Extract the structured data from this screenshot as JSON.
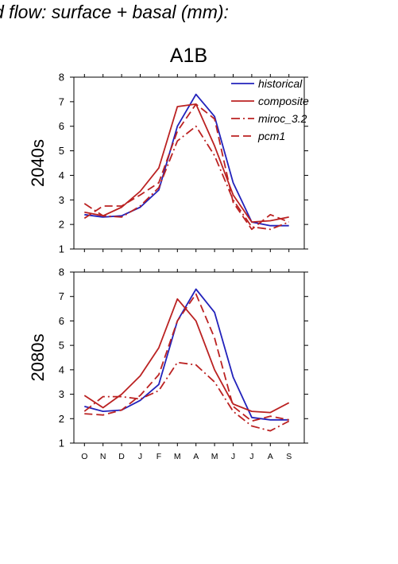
{
  "page_title": "d flow: surface + basal (mm):",
  "scenario": "A1B",
  "colors": {
    "historical": "#2222bb",
    "projection": "#bb2222",
    "axis": "#000000"
  },
  "chart_data": [
    {
      "type": "line",
      "panel_label": "2040s",
      "categories": [
        "O",
        "N",
        "D",
        "J",
        "F",
        "M",
        "A",
        "M",
        "J",
        "J",
        "A",
        "S"
      ],
      "ylim": [
        1,
        8
      ],
      "yticks": [
        1,
        2,
        3,
        4,
        5,
        6,
        7,
        8
      ],
      "legend": {
        "placement": "top-right"
      },
      "series": [
        {
          "name": "historical",
          "style": "solid",
          "color": "#2222bb",
          "values": [
            2.4,
            2.3,
            2.35,
            2.7,
            3.4,
            6.0,
            7.3,
            6.4,
            3.7,
            2.1,
            1.95,
            1.95
          ]
        },
        {
          "name": "composite",
          "style": "solid",
          "color": "#bb2222",
          "values": [
            2.5,
            2.35,
            2.7,
            3.35,
            4.3,
            6.8,
            6.9,
            5.2,
            3.2,
            2.1,
            2.15,
            2.3
          ]
        },
        {
          "name": "miroc_3.2",
          "style": "dashdot",
          "color": "#bb2222",
          "values": [
            2.85,
            2.35,
            2.3,
            2.75,
            3.5,
            5.4,
            6.0,
            4.8,
            3.0,
            1.9,
            1.8,
            2.1
          ]
        },
        {
          "name": "pcm1",
          "style": "dashed",
          "color": "#bb2222",
          "values": [
            2.25,
            2.75,
            2.75,
            3.2,
            3.7,
            5.8,
            6.9,
            6.3,
            2.9,
            1.8,
            2.4,
            2.1
          ]
        }
      ]
    },
    {
      "type": "line",
      "panel_label": "2080s",
      "categories": [
        "O",
        "N",
        "D",
        "J",
        "F",
        "M",
        "A",
        "M",
        "J",
        "J",
        "A",
        "S"
      ],
      "ylim": [
        1,
        8
      ],
      "yticks": [
        1,
        2,
        3,
        4,
        5,
        6,
        7,
        8
      ],
      "series": [
        {
          "name": "historical",
          "style": "solid",
          "color": "#2222bb",
          "values": [
            2.5,
            2.3,
            2.35,
            2.75,
            3.4,
            6.0,
            7.3,
            6.35,
            3.7,
            2.05,
            1.95,
            1.95
          ]
        },
        {
          "name": "composite",
          "style": "solid",
          "color": "#bb2222",
          "values": [
            2.95,
            2.45,
            3.0,
            3.75,
            4.9,
            6.9,
            6.0,
            4.0,
            2.6,
            2.3,
            2.25,
            2.65
          ]
        },
        {
          "name": "miroc_3.2",
          "style": "dashdot",
          "color": "#bb2222",
          "values": [
            2.3,
            2.9,
            2.9,
            2.8,
            3.15,
            4.3,
            4.2,
            3.5,
            2.3,
            1.7,
            1.5,
            1.9
          ]
        },
        {
          "name": "pcm1",
          "style": "dashed",
          "color": "#bb2222",
          "values": [
            2.2,
            2.15,
            2.35,
            2.95,
            3.8,
            6.0,
            7.1,
            5.3,
            2.5,
            1.9,
            2.1,
            1.95
          ]
        }
      ]
    }
  ]
}
